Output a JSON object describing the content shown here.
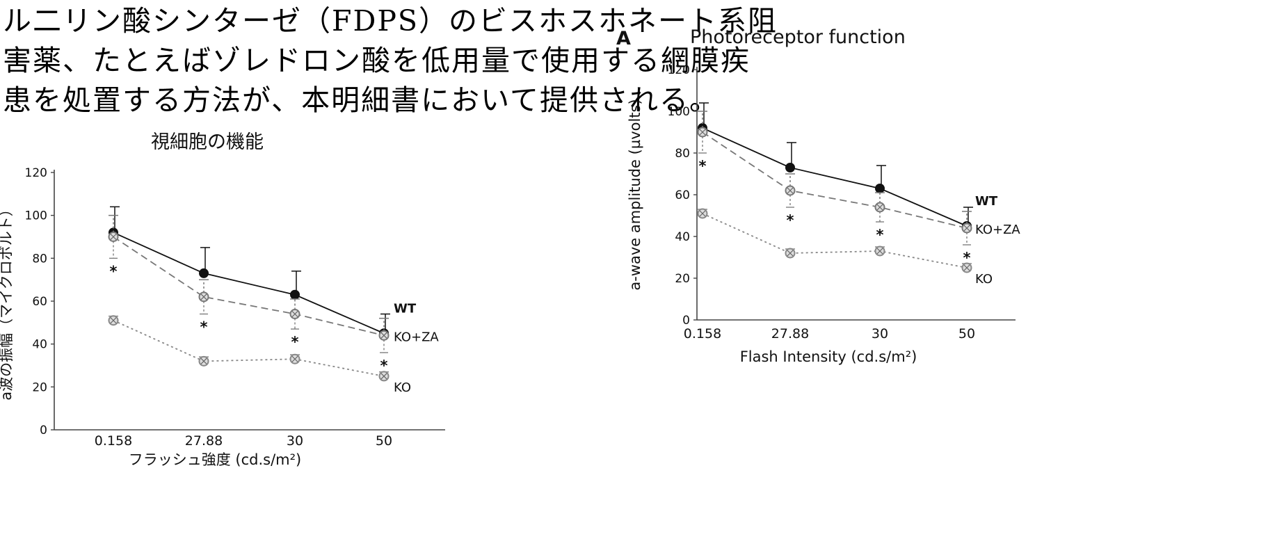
{
  "document": {
    "lines": [
      "ル二リン酸シンターゼ（FDPS）のビスホスホネート系阻",
      "害薬、たとえばゾレドロン酸を低用量で使用する網膜疾",
      "患を処置する方法が、本明細書において提供される。"
    ]
  },
  "colors": {
    "wt": "#111111",
    "ko_za": "#777777",
    "ko": "#888888"
  },
  "chart_data": [
    {
      "type": "line",
      "title": "視細胞の機能",
      "xlabel": "フラッシュ強度 (cd.s/m²)",
      "ylabel": "a波の振幅（マイクロボルト）",
      "categories": [
        "0.158",
        "27.88",
        "30",
        "50"
      ],
      "ylim": [
        0,
        120
      ],
      "yticks": [
        "0",
        "20",
        "40",
        "60",
        "80",
        "100",
        "120"
      ],
      "series": [
        {
          "name": "WT",
          "values": [
            92,
            73,
            63,
            45
          ],
          "err": [
            12,
            12,
            11,
            9
          ]
        },
        {
          "name": "KO+ZA",
          "values": [
            90,
            62,
            54,
            44
          ],
          "err": [
            10,
            8,
            7,
            8
          ]
        },
        {
          "name": "KO",
          "values": [
            51,
            32,
            33,
            25
          ],
          "err": [
            2,
            2,
            2,
            2
          ]
        }
      ],
      "annotations": [
        "*",
        "*",
        "*",
        "*"
      ]
    },
    {
      "type": "line",
      "panel_label": "A",
      "title": "Photoreceptor function",
      "xlabel": "Flash Intensity (cd.s/m²)",
      "ylabel": "a-wave amplitude (µvolts)",
      "categories": [
        "0.158",
        "27.88",
        "30",
        "50"
      ],
      "ylim": [
        0,
        120
      ],
      "yticks": [
        "0",
        "20",
        "40",
        "60",
        "80",
        "100",
        "120"
      ],
      "series": [
        {
          "name": "WT",
          "values": [
            92,
            73,
            63,
            45
          ],
          "err": [
            12,
            12,
            11,
            9
          ]
        },
        {
          "name": "KO+ZA",
          "values": [
            90,
            62,
            54,
            44
          ],
          "err": [
            10,
            8,
            7,
            8
          ]
        },
        {
          "name": "KO",
          "values": [
            51,
            32,
            33,
            25
          ],
          "err": [
            2,
            2,
            2,
            2
          ]
        }
      ],
      "annotations": [
        "*",
        "*",
        "*",
        "*"
      ]
    }
  ]
}
